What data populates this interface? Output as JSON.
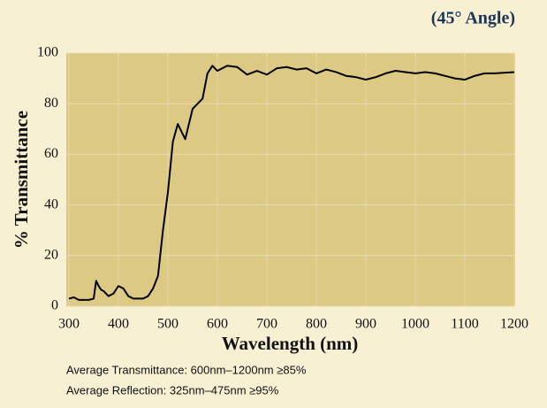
{
  "chart_data": {
    "type": "line",
    "title": "(45° Angle)",
    "x_label": "Wavelength (nm)",
    "y_label": "% Transmittance",
    "notes": [
      "Average Transmittance: 600nm–1200nm ≥85%",
      "Average Reflection: 325nm–475nm ≥95%"
    ],
    "x": [
      300,
      310,
      320,
      340,
      350,
      355,
      360,
      365,
      370,
      380,
      390,
      400,
      410,
      420,
      430,
      440,
      450,
      460,
      470,
      480,
      490,
      500,
      510,
      520,
      530,
      535,
      540,
      550,
      560,
      570,
      580,
      590,
      600,
      610,
      620,
      640,
      660,
      680,
      700,
      720,
      740,
      760,
      780,
      800,
      820,
      840,
      860,
      880,
      900,
      920,
      940,
      960,
      980,
      1000,
      1020,
      1040,
      1060,
      1080,
      1100,
      1120,
      1140,
      1160,
      1200
    ],
    "values": [
      3,
      3.5,
      2.5,
      2.5,
      3,
      10,
      8,
      6.5,
      6,
      4,
      5,
      8,
      7,
      4,
      3,
      3,
      3,
      4,
      7,
      12,
      30,
      45,
      65,
      72,
      68,
      66,
      70,
      78,
      80,
      82,
      92,
      95,
      93,
      94,
      95,
      94.5,
      91.5,
      93,
      91.5,
      94,
      94.5,
      93.5,
      94,
      92,
      93.5,
      92.5,
      91,
      90.5,
      89.5,
      90.5,
      92,
      93,
      92.5,
      92,
      92.5,
      92,
      91,
      90,
      89.5,
      91,
      92,
      92,
      92.5
    ],
    "color": "#000000",
    "xlim": [
      300,
      1200
    ],
    "xticks": [
      300,
      400,
      500,
      600,
      700,
      800,
      900,
      1000,
      1100,
      1200
    ],
    "ylim": [
      0,
      100
    ],
    "yticks": [
      0,
      20,
      40,
      60,
      80,
      100
    ],
    "grid": true
  }
}
